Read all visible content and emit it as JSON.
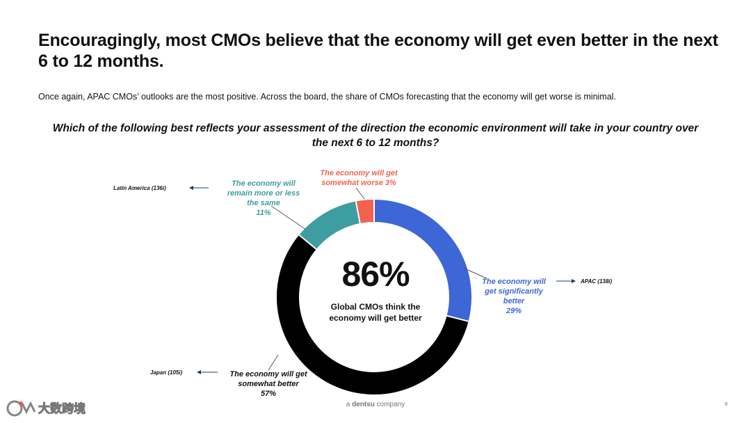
{
  "header": {
    "title": "Encouragingly, most CMOs believe that the economy will get even better in the next 6 to 12 months.",
    "subtitle": "Once again, APAC CMOs’ outlooks are the most positive. Across the board, the share of CMOs forecasting that the economy will get worse is minimal."
  },
  "question": "Which of the following best reflects your assessment of the direction the economic environment will take in your country over the next 6 to 12 months?",
  "center": {
    "value": "86%",
    "caption": "Global CMOs think the economy will get better"
  },
  "labels": {
    "significant": [
      "The economy will",
      "get significantly",
      "better",
      "29%"
    ],
    "somewhat_better": [
      "The economy will get",
      "somewhat better",
      "57%"
    ],
    "same": [
      "The economy will",
      "remain more or less",
      "the same",
      "11%"
    ],
    "worse": [
      "The economy will get",
      "somewhat worse 3%"
    ]
  },
  "regions": {
    "latam": "Latin America (136i)",
    "apac": "APAC (138i)",
    "japan": "Japan (105i)"
  },
  "footer": {
    "prefix": "a",
    "brand": "dentsu",
    "suffix": "company",
    "page": "9"
  },
  "watermark": {
    "text": "大数跨境"
  },
  "chart_data": {
    "type": "pie",
    "donut": true,
    "categories": [
      "The economy will get significantly better",
      "The economy will get somewhat better",
      "The economy will remain more or less the same",
      "The economy will get somewhat worse"
    ],
    "values": [
      29,
      57,
      11,
      3
    ],
    "colors": [
      "#3d66d6",
      "#000000",
      "#3e9da0",
      "#f4614f"
    ],
    "start": "12 o'clock",
    "direction": "clockwise"
  }
}
